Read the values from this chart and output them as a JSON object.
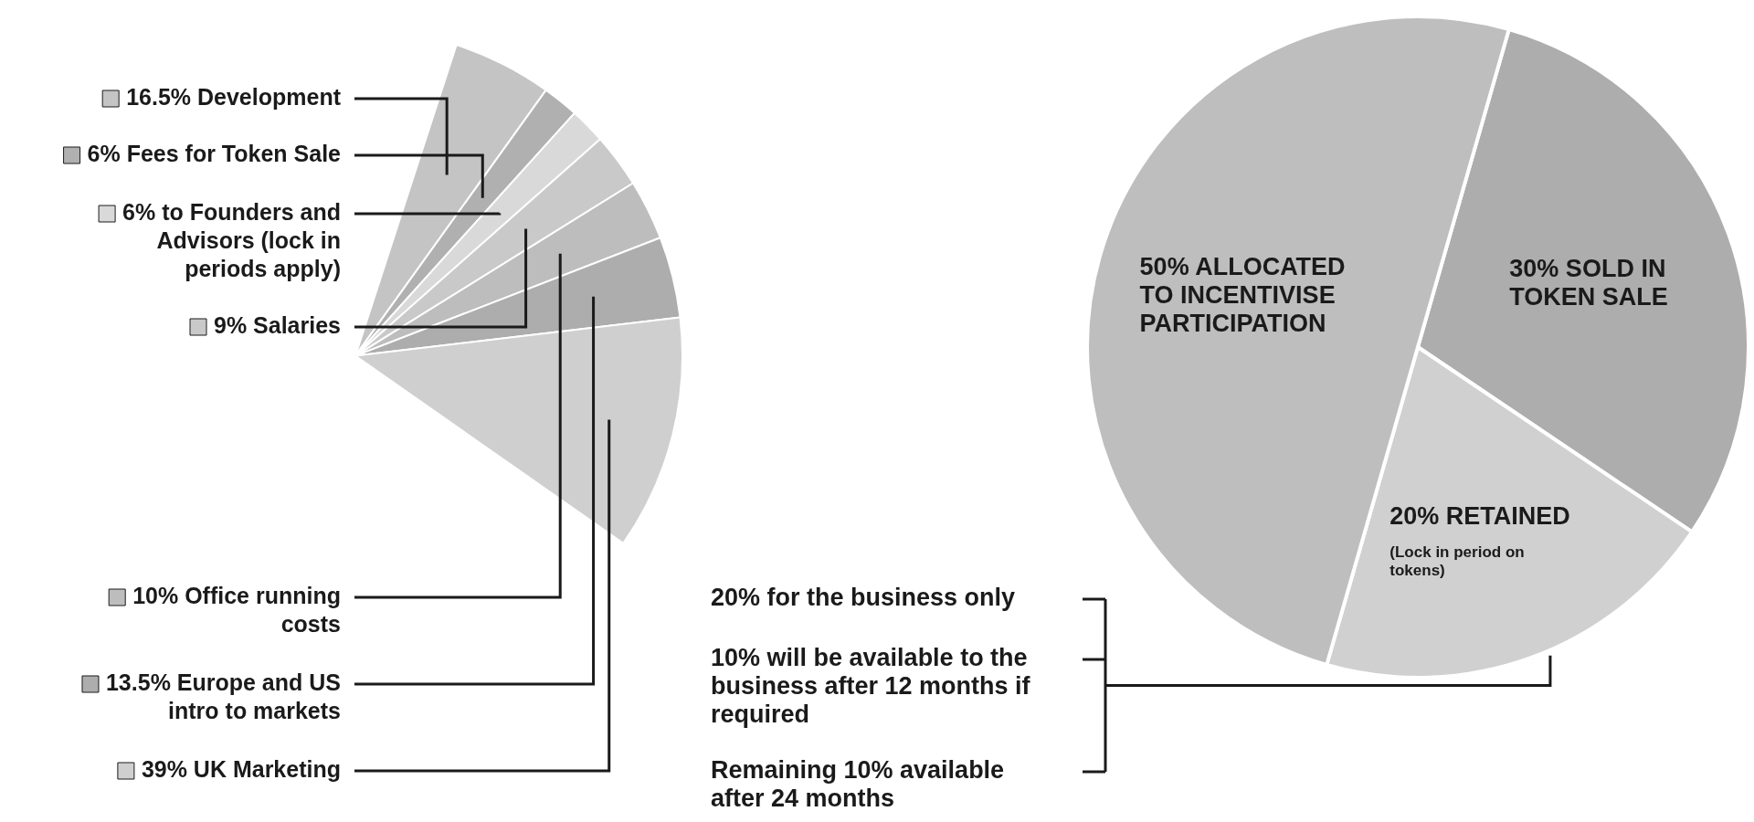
{
  "chart_data": [
    {
      "type": "pie",
      "categories": [
        "16.5% Development",
        "6% Fees for Token Sale",
        "6% to Founders and Advisors (lock in periods apply)",
        "9% Salaries",
        "10% Office running costs",
        "13.5% Europe and US intro to markets",
        "39% UK Marketing"
      ],
      "values": [
        16.5,
        6,
        6,
        9,
        10,
        13.5,
        39
      ],
      "colors": [
        "#c4c4c4",
        "#b0b0b0",
        "#d9d9d9",
        "#c9c9c9",
        "#bdbdbd",
        "#adadad",
        "#cfcfcf"
      ],
      "legend": "left"
    },
    {
      "type": "pie",
      "categories": [
        "30% SOLD IN TOKEN SALE",
        "20% RETAINED",
        "50% ALLOCATED TO INCENTIVISE PARTICIPATION"
      ],
      "values": [
        30,
        20,
        50
      ],
      "colors": [
        "#adadad",
        "#d0d0d0",
        "#bebebe"
      ],
      "annotations": [
        "(Lock in period on tokens)",
        "20% for the business only",
        "10% will be available to the business after 12 months if required",
        "Remaining 10% available after 24 months"
      ]
    }
  ]
}
